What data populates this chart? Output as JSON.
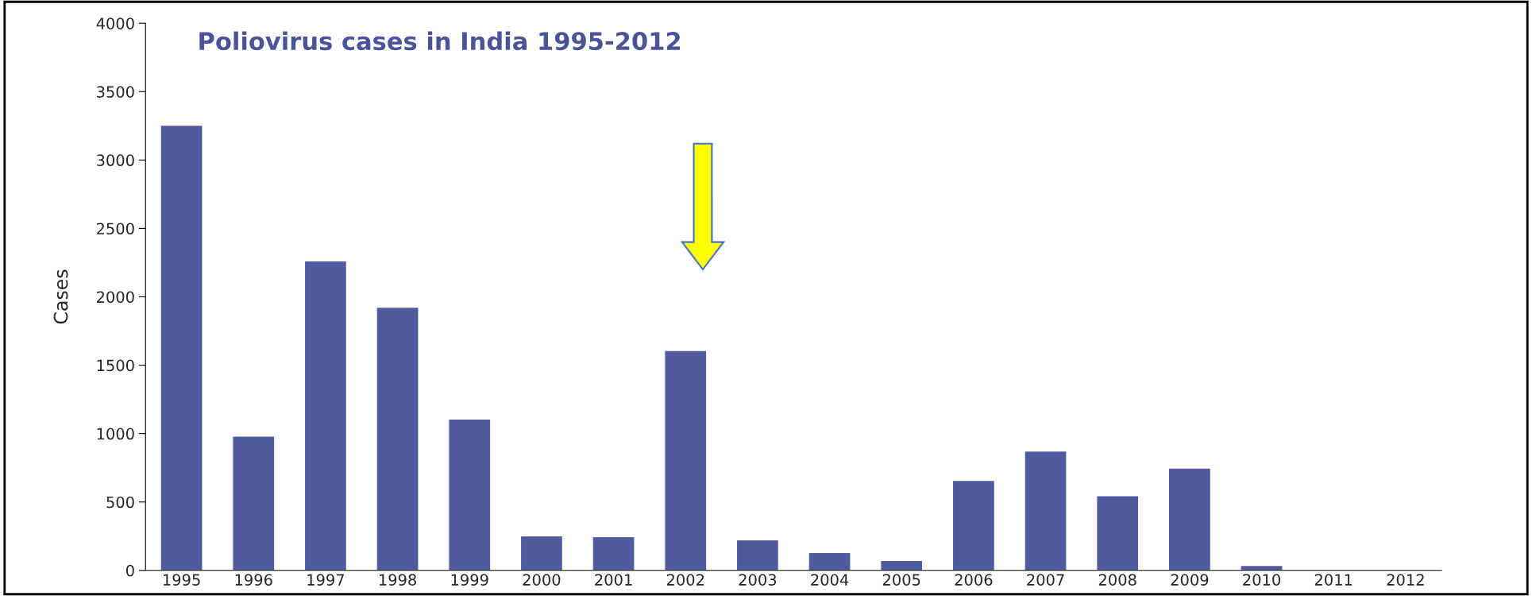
{
  "chart_data": {
    "type": "bar",
    "title": "Poliovirus cases in India 1995-2012",
    "ylabel": "Cases",
    "categories": [
      "1995",
      "1996",
      "1997",
      "1998",
      "1999",
      "2000",
      "2001",
      "2002",
      "2003",
      "2004",
      "2005",
      "2006",
      "2007",
      "2008",
      "2009",
      "2010",
      "2011",
      "2012"
    ],
    "values": [
      3250,
      978,
      2258,
      1920,
      1102,
      249,
      242,
      1604,
      219,
      126,
      68,
      653,
      869,
      542,
      743,
      32,
      0,
      0
    ],
    "color": "#4f5a9f",
    "ylim": [
      0,
      4000
    ],
    "yticks": [
      0,
      500,
      1000,
      1500,
      2000,
      2500,
      3000,
      3500,
      4000
    ],
    "grid": false,
    "legend": false
  }
}
